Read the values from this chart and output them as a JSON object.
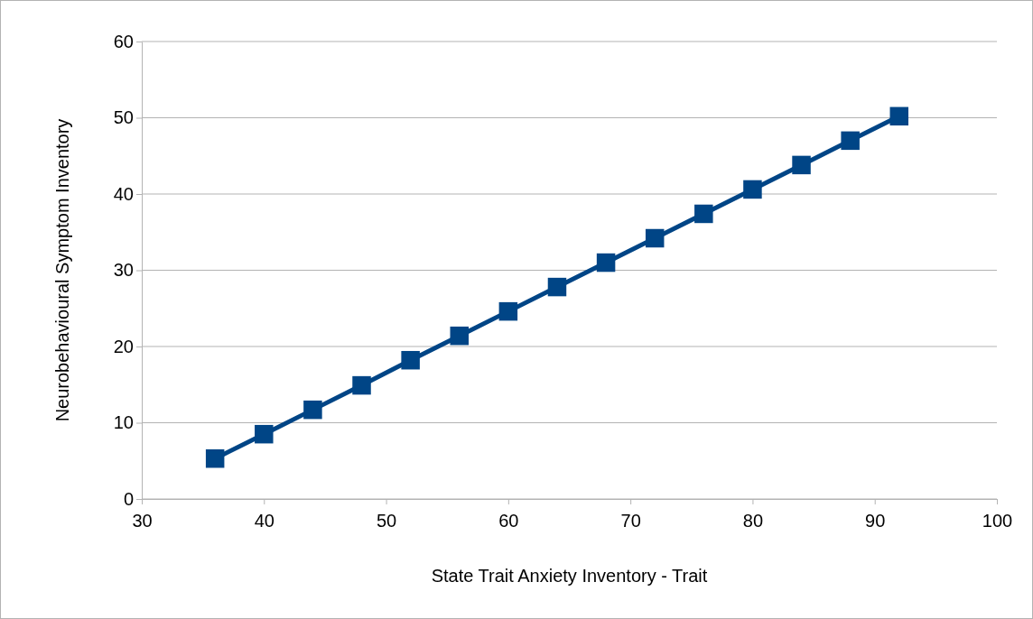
{
  "chart_data": {
    "type": "line",
    "xlabel": "State Trait Anxiety Inventory - Trait",
    "ylabel": "Neurobehavioural Symptom Inventory",
    "x": [
      36,
      40,
      44,
      48,
      52,
      56,
      60,
      64,
      68,
      72,
      76,
      80,
      84,
      88,
      92
    ],
    "series": [
      {
        "color": "#004586",
        "values": [
          5.3,
          8.5,
          11.7,
          14.9,
          18.2,
          21.4,
          24.6,
          27.8,
          31.0,
          34.2,
          37.4,
          40.6,
          43.8,
          47.0,
          50.2
        ]
      }
    ],
    "xlim": [
      30,
      100
    ],
    "xticks": [
      30,
      40,
      50,
      60,
      70,
      80,
      90,
      100
    ],
    "ylim": [
      0,
      60
    ],
    "yticks": [
      0,
      10,
      20,
      30,
      40,
      50,
      60
    ],
    "grid": "y",
    "marker": "square",
    "line_style": "solid"
  }
}
